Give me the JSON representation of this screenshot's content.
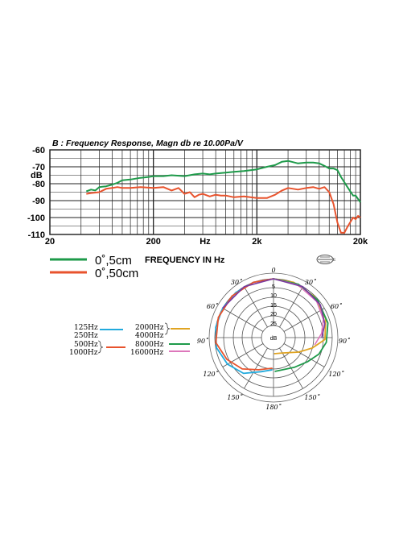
{
  "chart_data": [
    {
      "type": "line",
      "title": "B : Frequency Response, Magn db re 10.00Pa/V",
      "ylabel": "dB",
      "xlabel": "Hz",
      "x_scale": "log",
      "xlim": [
        20,
        20000
      ],
      "ylim": [
        -110,
        -60
      ],
      "x_ticks": [
        {
          "value": 20,
          "label": "20"
        },
        {
          "value": 200,
          "label": "200"
        },
        {
          "value": 632,
          "label": "Hz"
        },
        {
          "value": 2000,
          "label": "2k"
        },
        {
          "value": 20000,
          "label": "20k"
        }
      ],
      "y_ticks": [
        {
          "value": -60,
          "label": "-60"
        },
        {
          "value": -70,
          "label": "-70"
        },
        {
          "value": -80,
          "label": "-80"
        },
        {
          "value": -90,
          "label": "-90"
        },
        {
          "value": -100,
          "label": "-100"
        },
        {
          "value": -110,
          "label": "-110"
        }
      ],
      "series": [
        {
          "name": "0˚,5cm",
          "color": "#1e9a4a",
          "x": [
            45,
            50,
            55,
            60,
            70,
            80,
            90,
            100,
            120,
            150,
            180,
            200,
            250,
            300,
            400,
            500,
            600,
            700,
            800,
            1000,
            1200,
            1500,
            2000,
            2500,
            3000,
            3500,
            4000,
            5000,
            6000,
            7000,
            8000,
            9000,
            10000,
            11000,
            12000,
            13000,
            15000,
            17000,
            18000,
            20000
          ],
          "y": [
            -84.5,
            -83.5,
            -84,
            -82,
            -81.5,
            -80.5,
            -79.5,
            -78,
            -77.5,
            -76.5,
            -76,
            -75.5,
            -75.5,
            -75,
            -75.5,
            -74.5,
            -74,
            -74.5,
            -74,
            -73.5,
            -73,
            -72.5,
            -71.5,
            -70,
            -69,
            -67,
            -66.5,
            -68,
            -67.5,
            -67.5,
            -68,
            -69.5,
            -71,
            -71,
            -72,
            -76,
            -82,
            -87,
            -87,
            -91
          ]
        },
        {
          "name": "0˚,50cm",
          "color": "#e8532d",
          "x": [
            45,
            50,
            60,
            70,
            80,
            90,
            100,
            120,
            150,
            200,
            250,
            300,
            350,
            400,
            450,
            500,
            550,
            600,
            700,
            800,
            900,
            1000,
            1200,
            1500,
            2000,
            2500,
            3000,
            3500,
            4000,
            5000,
            6000,
            7000,
            8000,
            9000,
            10000,
            11000,
            12000,
            13000,
            14000,
            15000,
            17000,
            18000,
            19000,
            20000
          ],
          "y": [
            -86,
            -85.5,
            -85,
            -83,
            -82.5,
            -82,
            -82.5,
            -82.5,
            -82,
            -82.5,
            -82,
            -84,
            -82.5,
            -86,
            -85,
            -88,
            -86.5,
            -86,
            -87.5,
            -86.5,
            -87,
            -87,
            -88,
            -87.5,
            -88.5,
            -88.5,
            -86.5,
            -84,
            -82.5,
            -83.5,
            -82.5,
            -82,
            -83,
            -82,
            -85,
            -92,
            -103,
            -109,
            -109,
            -105.5,
            -100,
            -101,
            -99,
            -100
          ]
        }
      ]
    },
    {
      "type": "polar",
      "angle_labels": {
        "a0": "0",
        "a30": "30˚",
        "a60": "60˚",
        "a90": "90˚",
        "a120": "120˚",
        "a150": "150˚",
        "a180": "180˚"
      },
      "radial_labels": [
        "5",
        "10",
        "15",
        "20",
        "25",
        "dB"
      ],
      "legend": {
        "left": [
          "125Hz",
          "250Hz",
          "500Hz",
          "1000Hz"
        ],
        "right": [
          "2000Hz",
          "4000Hz",
          "8000Hz",
          "16000Hz"
        ]
      },
      "colors": {
        "c125_250": "#22aadd",
        "c500_1000": "#e8532d",
        "c2000_4000": "#e0a422",
        "c8000": "#1e9a4a",
        "c16000": "#dd77bb",
        "outline": "#7a3aa0"
      }
    }
  ]
}
